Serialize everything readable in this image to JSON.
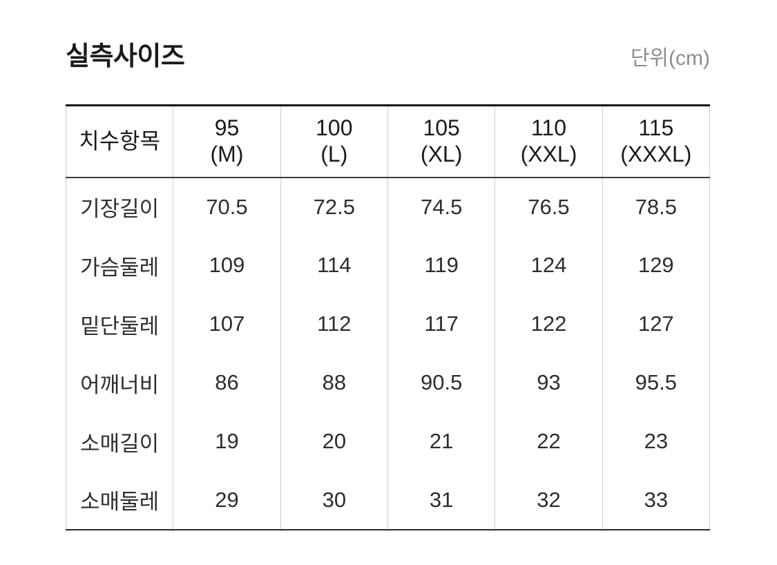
{
  "title": "실측사이즈",
  "unit_label": "단위(cm)",
  "table": {
    "item_header": "치수항목",
    "columns": [
      {
        "size": "95",
        "label": "(M)"
      },
      {
        "size": "100",
        "label": "(L)"
      },
      {
        "size": "105",
        "label": "(XL)"
      },
      {
        "size": "110",
        "label": "(XXL)"
      },
      {
        "size": "115",
        "label": "(XXXL)"
      }
    ],
    "rows": [
      {
        "label": "기장길이",
        "values": [
          "70.5",
          "72.5",
          "74.5",
          "76.5",
          "78.5"
        ]
      },
      {
        "label": "가슴둘레",
        "values": [
          "109",
          "114",
          "119",
          "124",
          "129"
        ]
      },
      {
        "label": "밑단둘레",
        "values": [
          "107",
          "112",
          "117",
          "122",
          "127"
        ]
      },
      {
        "label": "어깨너비",
        "values": [
          "86",
          "88",
          "90.5",
          "93",
          "95.5"
        ]
      },
      {
        "label": "소매길이",
        "values": [
          "19",
          "20",
          "21",
          "22",
          "23"
        ]
      },
      {
        "label": "소매둘레",
        "values": [
          "29",
          "30",
          "31",
          "32",
          "33"
        ]
      }
    ]
  },
  "chart_data": {
    "type": "table",
    "title": "실측사이즈",
    "unit": "cm",
    "columns": [
      "치수항목",
      "95 (M)",
      "100 (L)",
      "105 (XL)",
      "110 (XXL)",
      "115 (XXXL)"
    ],
    "rows": [
      [
        "기장길이",
        70.5,
        72.5,
        74.5,
        76.5,
        78.5
      ],
      [
        "가슴둘레",
        109,
        114,
        119,
        124,
        129
      ],
      [
        "밑단둘레",
        107,
        112,
        117,
        122,
        127
      ],
      [
        "어깨너비",
        86,
        88,
        90.5,
        93,
        95.5
      ],
      [
        "소매길이",
        19,
        20,
        21,
        22,
        23
      ],
      [
        "소매둘레",
        29,
        30,
        31,
        32,
        33
      ]
    ]
  },
  "colors": {
    "title_text": "#1a1a1a",
    "unit_text": "#8c8c8c",
    "cell_text": "#2d2d2d",
    "top_rule": "#161616",
    "header_rule": "#3c3c3c",
    "bottom_rule": "#2a2a2a",
    "column_separator": "#cfcfcf",
    "background": "#ffffff"
  }
}
